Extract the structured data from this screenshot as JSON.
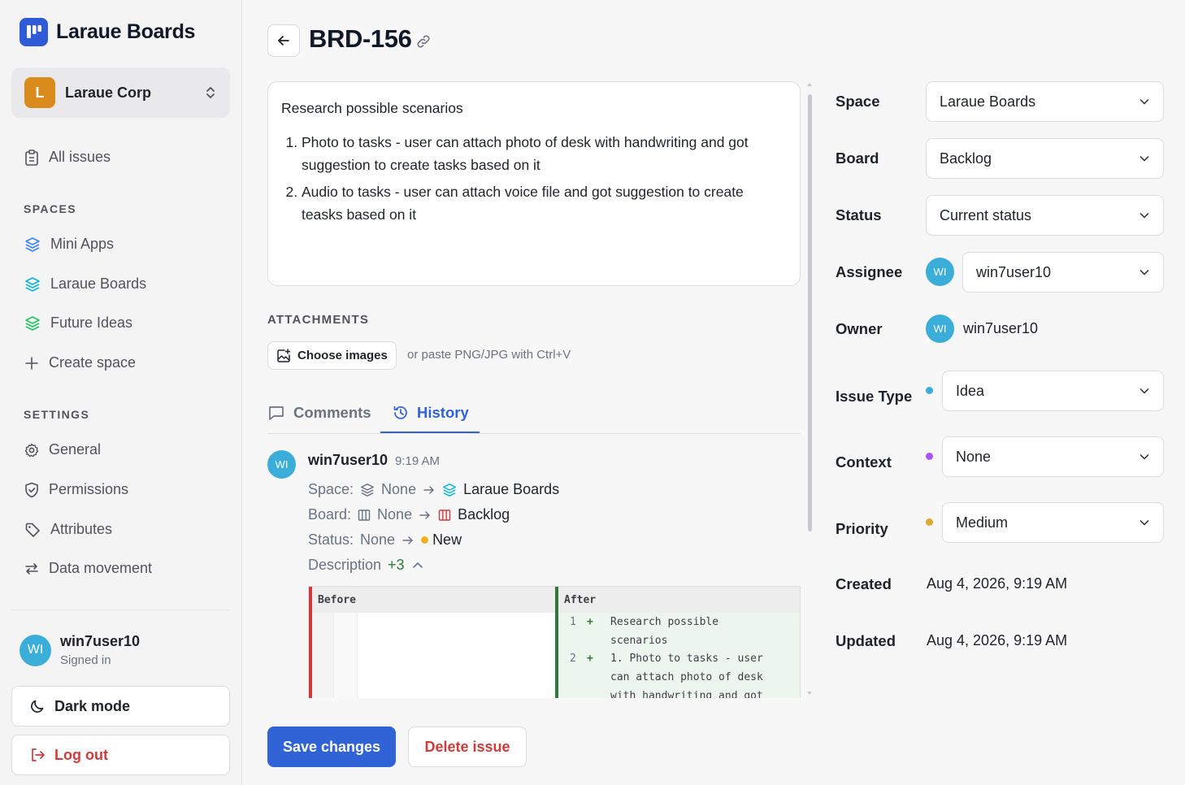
{
  "app": {
    "name": "Laraue Boards"
  },
  "org": {
    "initial": "L",
    "name": "Laraue Corp"
  },
  "nav": {
    "all_issues": "All issues"
  },
  "spaces": {
    "title": "SPACES",
    "items": [
      {
        "label": "Mini Apps",
        "color": "#3b82f6"
      },
      {
        "label": "Laraue Boards",
        "color": "#06b6d4"
      },
      {
        "label": "Future Ideas",
        "color": "#22c55e"
      }
    ],
    "create_label": "Create space"
  },
  "settings": {
    "title": "SETTINGS",
    "items": [
      "General",
      "Permissions",
      "Attributes",
      "Data movement"
    ]
  },
  "user": {
    "initials": "WI",
    "name": "win7user10",
    "status": "Signed in"
  },
  "buttons": {
    "dark_mode": "Dark mode",
    "log_out": "Log out",
    "save": "Save changes",
    "delete": "Delete issue"
  },
  "issue": {
    "key": "BRD-156",
    "description": {
      "intro": "Research possible scenarios",
      "items": [
        "Photo to tasks - user can attach photo of desk with handwriting and got suggestion to create tasks based on it",
        "Audio to tasks - user can attach voice file and got suggestion to create teasks based on it"
      ]
    }
  },
  "attachments": {
    "title": "ATTACHMENTS",
    "choose_label": "Choose images",
    "hint": "or paste PNG/JPG with Ctrl+V"
  },
  "tabs": {
    "comments": "Comments",
    "history": "History",
    "active": "History"
  },
  "history": {
    "avatar": "WI",
    "user": "win7user10",
    "time": "9:19 AM",
    "space": {
      "label": "Space:",
      "from": "None",
      "to": "Laraue Boards"
    },
    "board": {
      "label": "Board:",
      "from": "None",
      "to": "Backlog"
    },
    "status": {
      "label": "Status:",
      "from": "None",
      "to": "New",
      "to_color": "#f2b01e"
    },
    "description": {
      "label": "Description",
      "count": "+3"
    },
    "diff": {
      "before_label": "Before",
      "after_label": "After",
      "after_lines": [
        {
          "num": "1",
          "marker": "+",
          "text": "Research possible\nscenarios"
        },
        {
          "num": "2",
          "marker": "+",
          "text": "1. Photo to tasks - user\ncan attach photo of desk\nwith handwriting and got"
        }
      ]
    }
  },
  "fields": {
    "space": {
      "label": "Space",
      "value": "Laraue Boards"
    },
    "board": {
      "label": "Board",
      "value": "Backlog"
    },
    "status": {
      "label": "Status",
      "value": "Current status"
    },
    "assignee": {
      "label": "Assignee",
      "initials": "WI",
      "value": "win7user10"
    },
    "owner": {
      "label": "Owner",
      "initials": "WI",
      "value": "win7user10"
    },
    "issue_type": {
      "label": "Issue Type",
      "value": "Idea",
      "dot_color": "#3aaed8"
    },
    "context": {
      "label": "Context",
      "value": "None",
      "dot_color": "#a855f7"
    },
    "priority": {
      "label": "Priority",
      "value": "Medium",
      "dot_color": "#e0a830"
    },
    "created": {
      "label": "Created",
      "value": "Aug 4, 2026, 9:19 AM"
    },
    "updated": {
      "label": "Updated",
      "value": "Aug 4, 2026, 9:19 AM"
    }
  }
}
